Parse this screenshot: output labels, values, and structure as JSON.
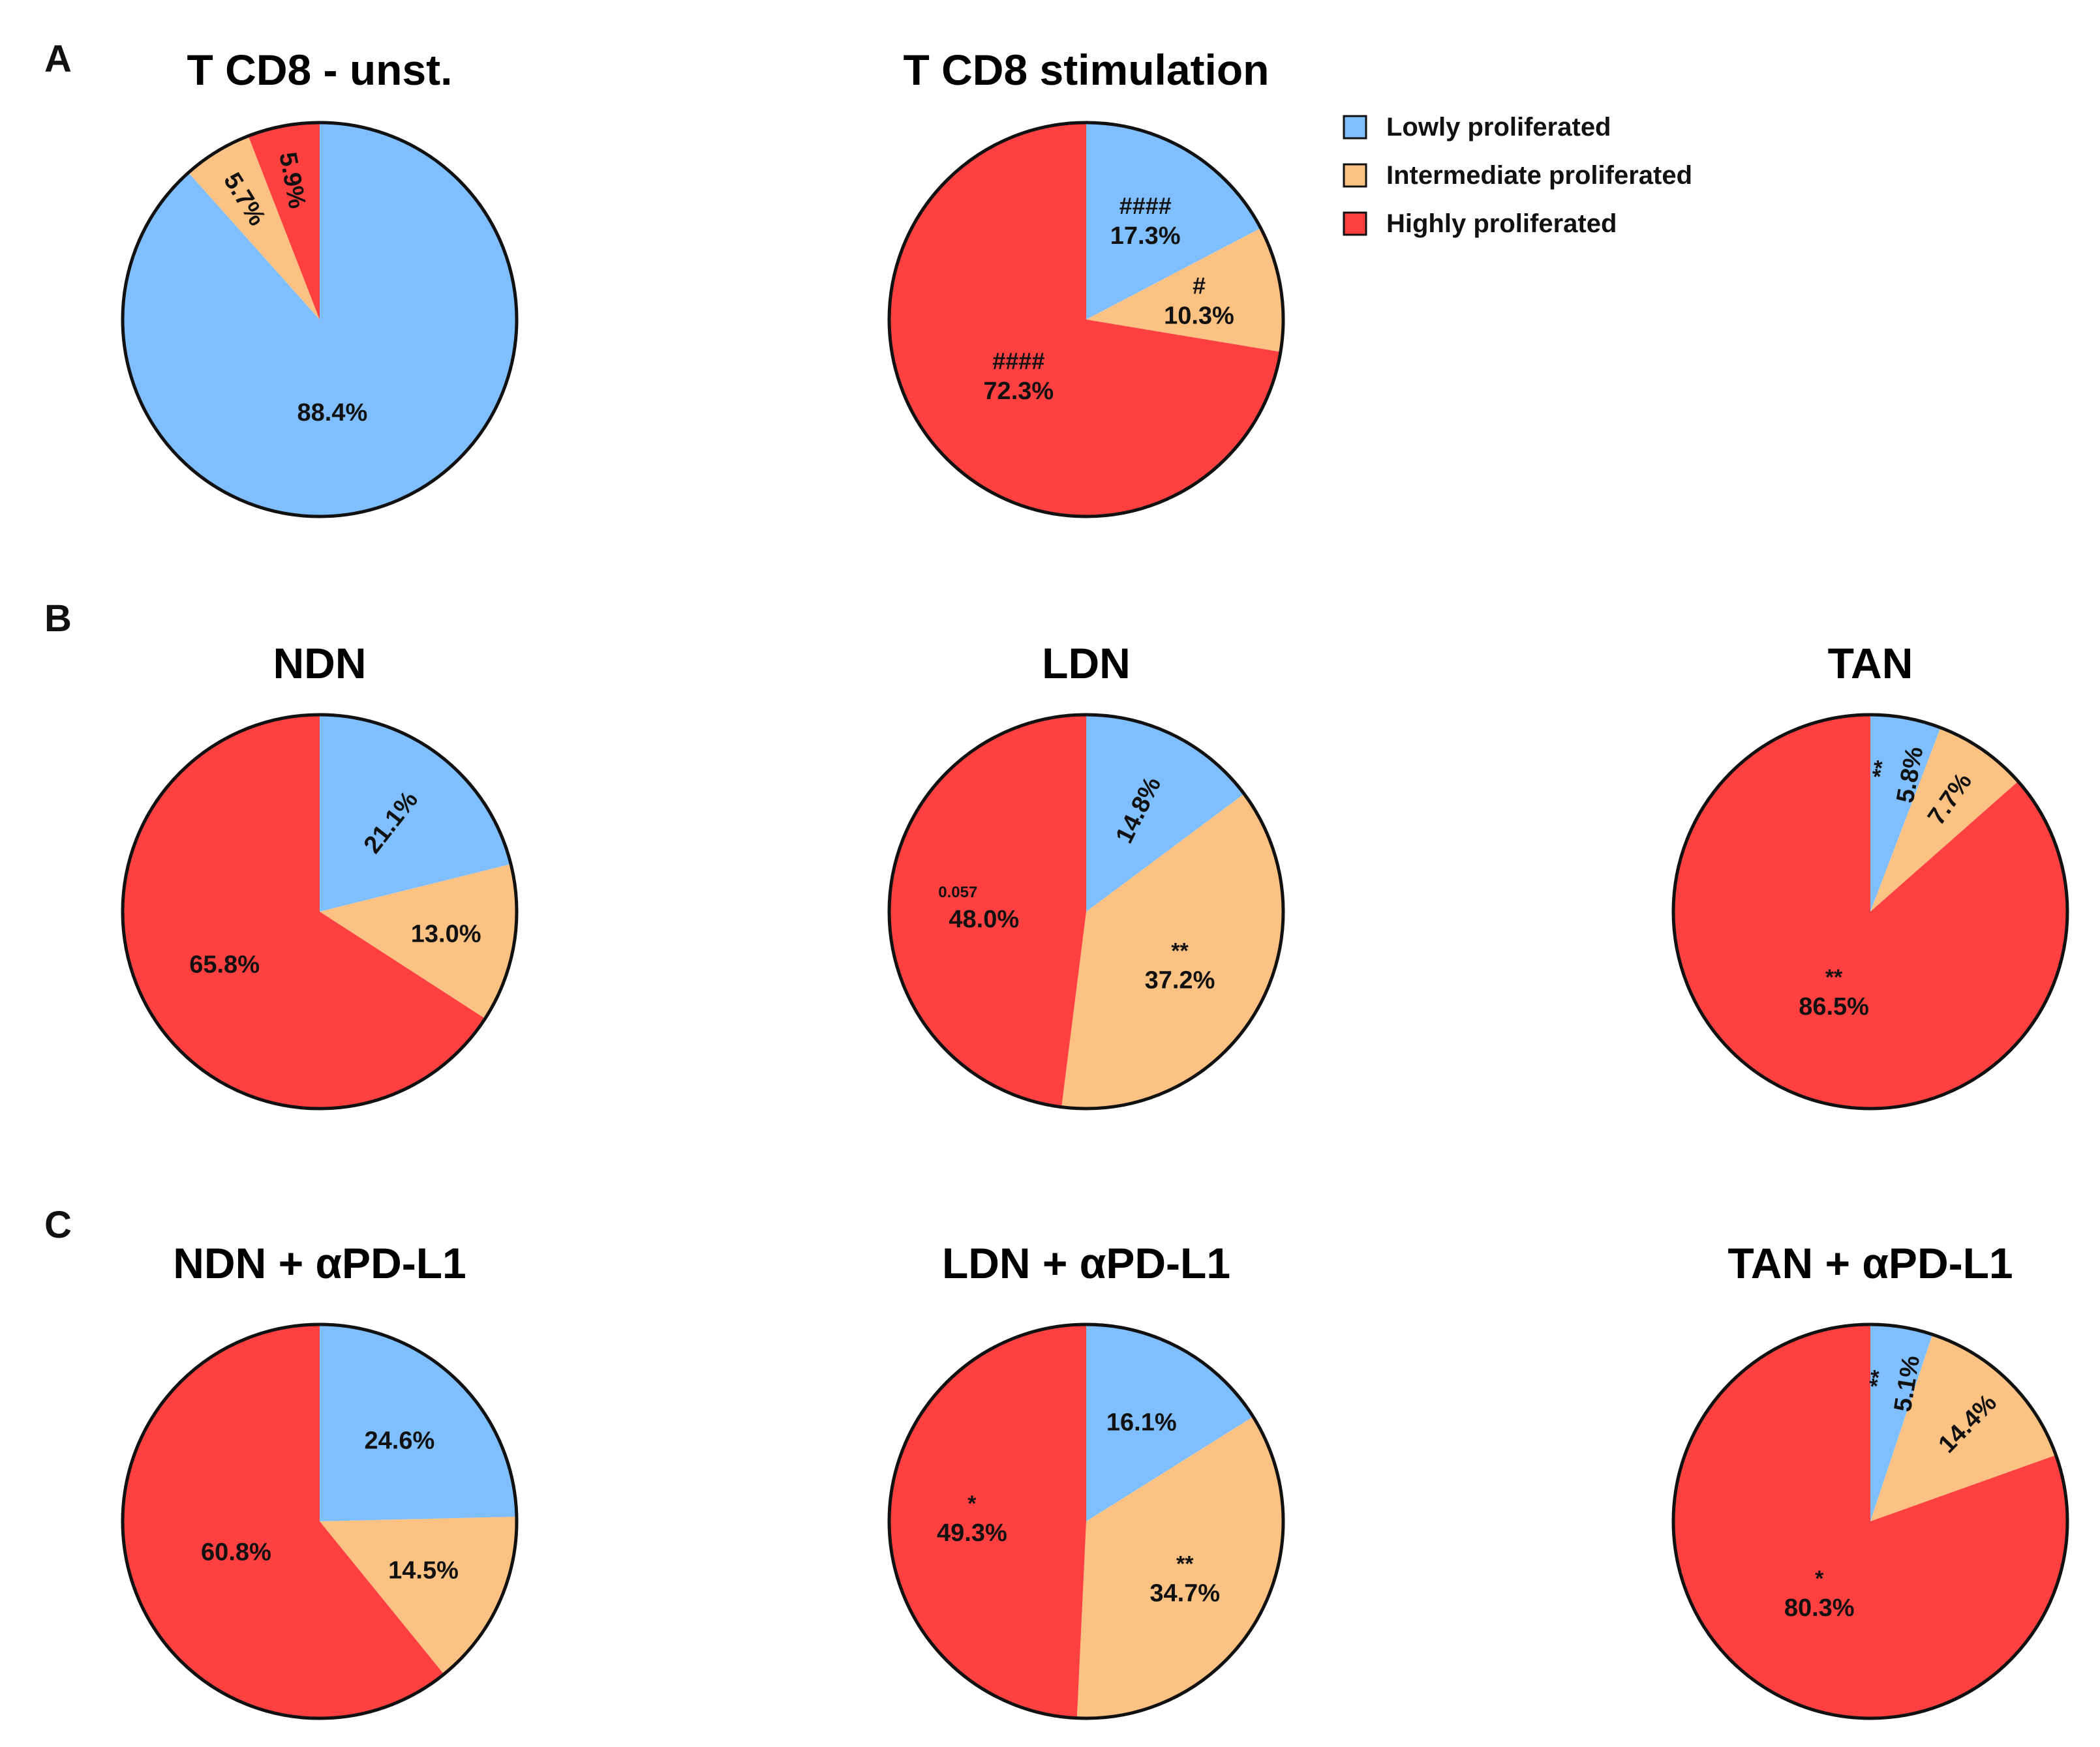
{
  "figure": {
    "panel_letters": [
      "A",
      "B",
      "C"
    ]
  },
  "colors": {
    "lowly": "#7fbfff",
    "intermediate": "#fcc283",
    "highly": "#ff4040",
    "outline": "#111111"
  },
  "legend": {
    "entries": [
      {
        "key": "lowly",
        "label": "Lowly proliferated"
      },
      {
        "key": "intermediate",
        "label": "Intermediate proliferated"
      },
      {
        "key": "highly",
        "label": "Highly proliferated"
      }
    ]
  },
  "chart_data": [
    {
      "type": "pie",
      "id": "tcd8-unst",
      "panel": "A",
      "title": "T CD8 - unst.",
      "slices": [
        {
          "category": "lowly",
          "value": 88.4,
          "label": "88.4%",
          "mark": ""
        },
        {
          "category": "intermediate",
          "value": 5.7,
          "label": "5.7%",
          "mark": ""
        },
        {
          "category": "highly",
          "value": 5.9,
          "label": "5.9%",
          "mark": ""
        }
      ]
    },
    {
      "type": "pie",
      "id": "tcd8-stim",
      "panel": "A",
      "title": "T CD8 stimulation",
      "slices": [
        {
          "category": "lowly",
          "value": 17.3,
          "label": "17.3%",
          "mark": "####"
        },
        {
          "category": "intermediate",
          "value": 10.3,
          "label": "10.3%",
          "mark": "#"
        },
        {
          "category": "highly",
          "value": 72.3,
          "label": "72.3%",
          "mark": "####"
        }
      ]
    },
    {
      "type": "pie",
      "id": "ndn",
      "panel": "B",
      "title": "NDN",
      "slices": [
        {
          "category": "lowly",
          "value": 21.1,
          "label": "21.1%",
          "mark": ""
        },
        {
          "category": "intermediate",
          "value": 13.0,
          "label": "13.0%",
          "mark": ""
        },
        {
          "category": "highly",
          "value": 65.8,
          "label": "65.8%",
          "mark": ""
        }
      ]
    },
    {
      "type": "pie",
      "id": "ldn",
      "panel": "B",
      "title": "LDN",
      "slices": [
        {
          "category": "lowly",
          "value": 14.8,
          "label": "14.8%",
          "mark": ""
        },
        {
          "category": "intermediate",
          "value": 37.2,
          "label": "37.2%",
          "mark": "**"
        },
        {
          "category": "highly",
          "value": 48.0,
          "label": "48.0%",
          "mark": "0.057"
        }
      ]
    },
    {
      "type": "pie",
      "id": "tan",
      "panel": "B",
      "title": "TAN",
      "slices": [
        {
          "category": "lowly",
          "value": 5.8,
          "label": "5.8%",
          "mark": "**"
        },
        {
          "category": "intermediate",
          "value": 7.7,
          "label": "7.7%",
          "mark": ""
        },
        {
          "category": "highly",
          "value": 86.5,
          "label": "86.5%",
          "mark": "**"
        }
      ]
    },
    {
      "type": "pie",
      "id": "ndn-pdl1",
      "panel": "C",
      "title": "NDN + αPD-L1",
      "slices": [
        {
          "category": "lowly",
          "value": 24.6,
          "label": "24.6%",
          "mark": ""
        },
        {
          "category": "intermediate",
          "value": 14.5,
          "label": "14.5%",
          "mark": ""
        },
        {
          "category": "highly",
          "value": 60.8,
          "label": "60.8%",
          "mark": ""
        }
      ]
    },
    {
      "type": "pie",
      "id": "ldn-pdl1",
      "panel": "C",
      "title": "LDN + αPD-L1",
      "slices": [
        {
          "category": "lowly",
          "value": 16.1,
          "label": "16.1%",
          "mark": ""
        },
        {
          "category": "intermediate",
          "value": 34.7,
          "label": "34.7%",
          "mark": "**"
        },
        {
          "category": "highly",
          "value": 49.3,
          "label": "49.3%",
          "mark": "*"
        }
      ]
    },
    {
      "type": "pie",
      "id": "tan-pdl1",
      "panel": "C",
      "title": "TAN + αPD-L1",
      "slices": [
        {
          "category": "lowly",
          "value": 5.1,
          "label": "5.1%",
          "mark": "**"
        },
        {
          "category": "intermediate",
          "value": 14.4,
          "label": "14.4%",
          "mark": ""
        },
        {
          "category": "highly",
          "value": 80.3,
          "label": "80.3%",
          "mark": "*"
        }
      ]
    }
  ]
}
